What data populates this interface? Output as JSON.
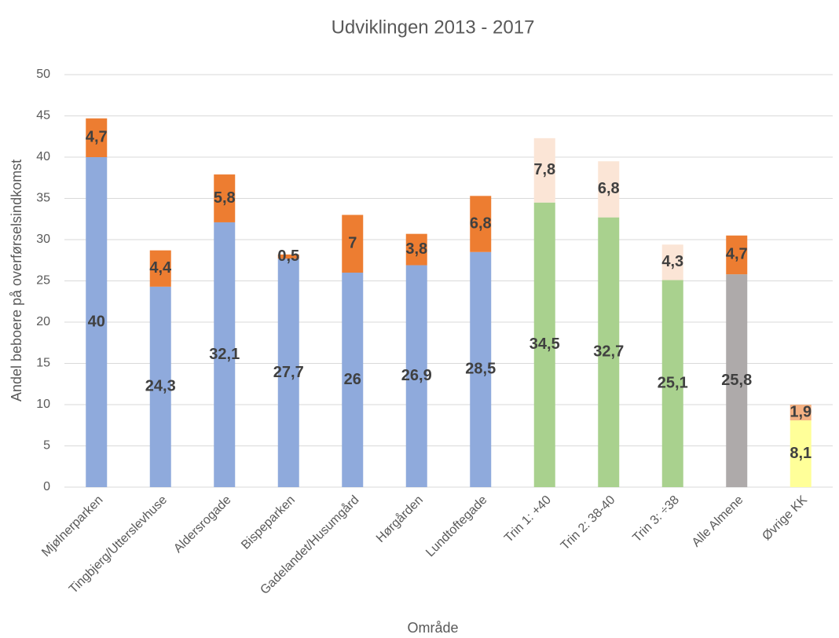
{
  "chart_data": {
    "type": "stacked_bar",
    "title": "Udviklingen 2013 - 2017",
    "x_label": "Område",
    "y_label": "Andel beboere på overførselsindkomst",
    "categories": [
      "Mjølnerparken",
      "Tingbjerg/Utterslevhuse",
      "Aldersrogade",
      "Bispeparken",
      "Gadelandet/Husumgård",
      "Hørgården",
      "Lundtoftegade",
      "Trin 1: +40",
      "Trin 2: 38-40",
      "Trin 3: ÷38",
      "Alle Almene",
      "Øvrige KK"
    ],
    "series": [
      {
        "values": [
          40,
          24.3,
          32.1,
          27.7,
          26,
          26.9,
          28.5,
          34.5,
          32.7,
          25.1,
          25.8,
          8.1
        ],
        "value_labels": [
          "40",
          "24,3",
          "32,1",
          "27,7",
          "26",
          "26,9",
          "28,5",
          "34,5",
          "32,7",
          "25,1",
          "25,8",
          "8,1"
        ],
        "colors": [
          "#8faadc",
          "#8faadc",
          "#8faadc",
          "#8faadc",
          "#8faadc",
          "#8faadc",
          "#8faadc",
          "#a9d18e",
          "#a9d18e",
          "#a9d18e",
          "#aeaaaa",
          "#ffff99"
        ]
      },
      {
        "values": [
          4.7,
          4.4,
          5.8,
          0.5,
          7,
          3.8,
          6.8,
          7.8,
          6.8,
          4.3,
          4.7,
          1.9
        ],
        "value_labels": [
          "4,7",
          "4,4",
          "5,8",
          "0,5",
          "7",
          "3,8",
          "6,8",
          "7,8",
          "6,8",
          "4,3",
          "4,7",
          "1,9"
        ],
        "colors": [
          "#ed7d31",
          "#ed7d31",
          "#ed7d31",
          "#ed7d31",
          "#ed7d31",
          "#ed7d31",
          "#ed7d31",
          "#fbe5d6",
          "#fbe5d6",
          "#fbe5d6",
          "#ed7d31",
          "#f4b183"
        ]
      }
    ],
    "ylim": [
      0,
      50
    ],
    "yticks": [
      0,
      5,
      10,
      15,
      20,
      25,
      30,
      35,
      40,
      45,
      50
    ],
    "grid": true
  }
}
